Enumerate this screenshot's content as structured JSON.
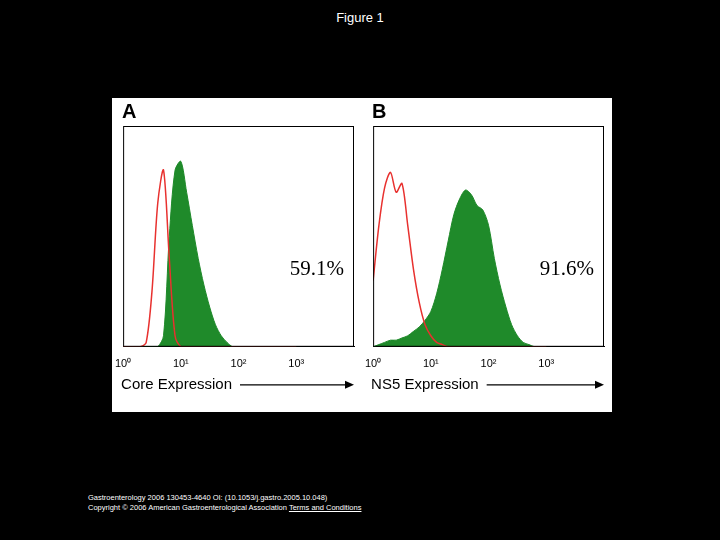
{
  "page": {
    "title": "Figure 1",
    "footer": [
      "Gastroenterology 2006 130453-4640 OI: (10.1053/j.gastro.2005.10.048)",
      "Copyright © 2006 American Gastroenterological Association",
      "Terms and Conditions"
    ]
  },
  "chart_data": [
    {
      "type": "line",
      "title": "A",
      "x_label": "Core Expression",
      "annotation": "59.1%",
      "log": "x",
      "grid": false,
      "tick_labels": "x",
      "xlim": [
        1,
        10000
      ],
      "xticks": [
        {
          "value": 1,
          "label": "10⁰"
        },
        {
          "value": 10,
          "label": "10¹"
        },
        {
          "value": 100,
          "label": "10²"
        },
        {
          "value": 1000,
          "label": "10³"
        }
      ],
      "ylim": [
        0,
        100
      ],
      "x": [
        1,
        1.26,
        1.58,
        2,
        2.51,
        3.16,
        3.98,
        5.01,
        6.31,
        7.94,
        10,
        12.6,
        15.8,
        20,
        25.1,
        31.6,
        39.8,
        50.1,
        63.1,
        79.4,
        100,
        126,
        158,
        200,
        251,
        316,
        398,
        501,
        631,
        794,
        1000
      ],
      "series": [
        {
          "type": "line",
          "color": "#e8312f",
          "marker": "none",
          "line_style": "solid",
          "values": [
            0,
            0,
            0,
            0,
            2,
            25,
            65,
            80,
            40,
            5,
            0,
            0,
            0,
            0,
            0,
            0,
            0,
            0,
            0,
            0,
            0,
            0,
            0,
            0,
            0,
            0,
            0,
            0,
            0,
            0,
            0
          ]
        },
        {
          "type": "area",
          "color": "#1f8a2a",
          "marker": "none",
          "line_style": "solid",
          "values": [
            0,
            0,
            0,
            0,
            0,
            0,
            0,
            5,
            50,
            80,
            84,
            70,
            55,
            40,
            28,
            18,
            10,
            5,
            2,
            0,
            0,
            0,
            0,
            0,
            0,
            0,
            0,
            0,
            0,
            0,
            0
          ]
        }
      ]
    },
    {
      "type": "line",
      "title": "B",
      "x_label": "NS5 Expression",
      "annotation": "91.6%",
      "log": "x",
      "grid": false,
      "tick_labels": "x",
      "xlim": [
        1,
        10000
      ],
      "xticks": [
        {
          "value": 1,
          "label": "10⁰"
        },
        {
          "value": 10,
          "label": "10¹"
        },
        {
          "value": 100,
          "label": "10²"
        },
        {
          "value": 1000,
          "label": "10³"
        }
      ],
      "ylim": [
        0,
        100
      ],
      "x": [
        1,
        1.26,
        1.58,
        2,
        2.51,
        3.16,
        3.98,
        5.01,
        6.31,
        7.94,
        10,
        12.6,
        15.8,
        20,
        25.1,
        31.6,
        39.8,
        50.1,
        63.1,
        79.4,
        100,
        126,
        158,
        200,
        251,
        316,
        398,
        501,
        631,
        794,
        1000
      ],
      "series": [
        {
          "type": "line",
          "color": "#e8312f",
          "marker": "none",
          "line_style": "solid",
          "values": [
            30,
            55,
            72,
            79,
            70,
            74,
            55,
            35,
            20,
            10,
            5,
            2,
            1,
            0,
            0,
            0,
            0,
            0,
            0,
            0,
            0,
            0,
            0,
            0,
            0,
            0,
            0,
            0,
            0,
            0,
            0
          ]
        },
        {
          "type": "area",
          "color": "#1f8a2a",
          "marker": "none",
          "line_style": "solid",
          "values": [
            0,
            1,
            2,
            3,
            3,
            4,
            5,
            7,
            9,
            12,
            16,
            24,
            35,
            48,
            60,
            67,
            71,
            69,
            64,
            62,
            55,
            40,
            28,
            18,
            10,
            5,
            2,
            1,
            0,
            0,
            0
          ]
        }
      ]
    }
  ]
}
